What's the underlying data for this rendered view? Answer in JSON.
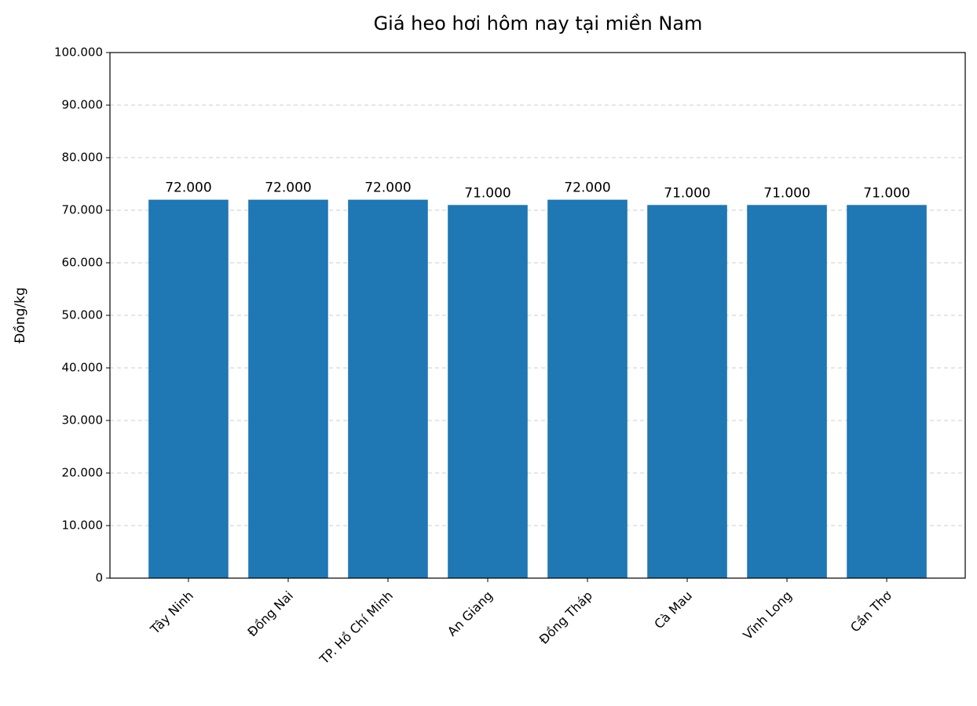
{
  "chart_data": {
    "type": "bar",
    "title": "Giá heo hơi hôm nay tại miền Nam",
    "y_label": "Đồng/kg",
    "categories": [
      "Tây Ninh",
      "Đồng Nai",
      "TP. Hồ Chí Minh",
      "An Giang",
      "Đồng Tháp",
      "Cà Mau",
      "Vĩnh Long",
      "Cần Thơ"
    ],
    "values": [
      72000,
      72000,
      72000,
      71000,
      72000,
      71000,
      71000,
      71000
    ],
    "value_labels": [
      "72.000",
      "72.000",
      "72.000",
      "71.000",
      "72.000",
      "71.000",
      "71.000",
      "71.000"
    ],
    "color": "#1f77b4",
    "ylim": [
      0,
      100000
    ],
    "yticks": [
      0,
      {
        "value": 10000,
        "label": "10.000"
      },
      {
        "value": 20000,
        "label": "20.000"
      },
      {
        "value": 30000,
        "label": "30.000"
      },
      {
        "value": 40000,
        "label": "40.000"
      },
      {
        "value": 50000,
        "label": "50.000"
      },
      {
        "value": 60000,
        "label": "60.000"
      },
      {
        "value": 70000,
        "label": "70.000"
      },
      {
        "value": 80000,
        "label": "80.000"
      },
      {
        "value": 90000,
        "label": "90.000"
      },
      {
        "value": 100000,
        "label": "100.000"
      }
    ],
    "grid": true
  }
}
